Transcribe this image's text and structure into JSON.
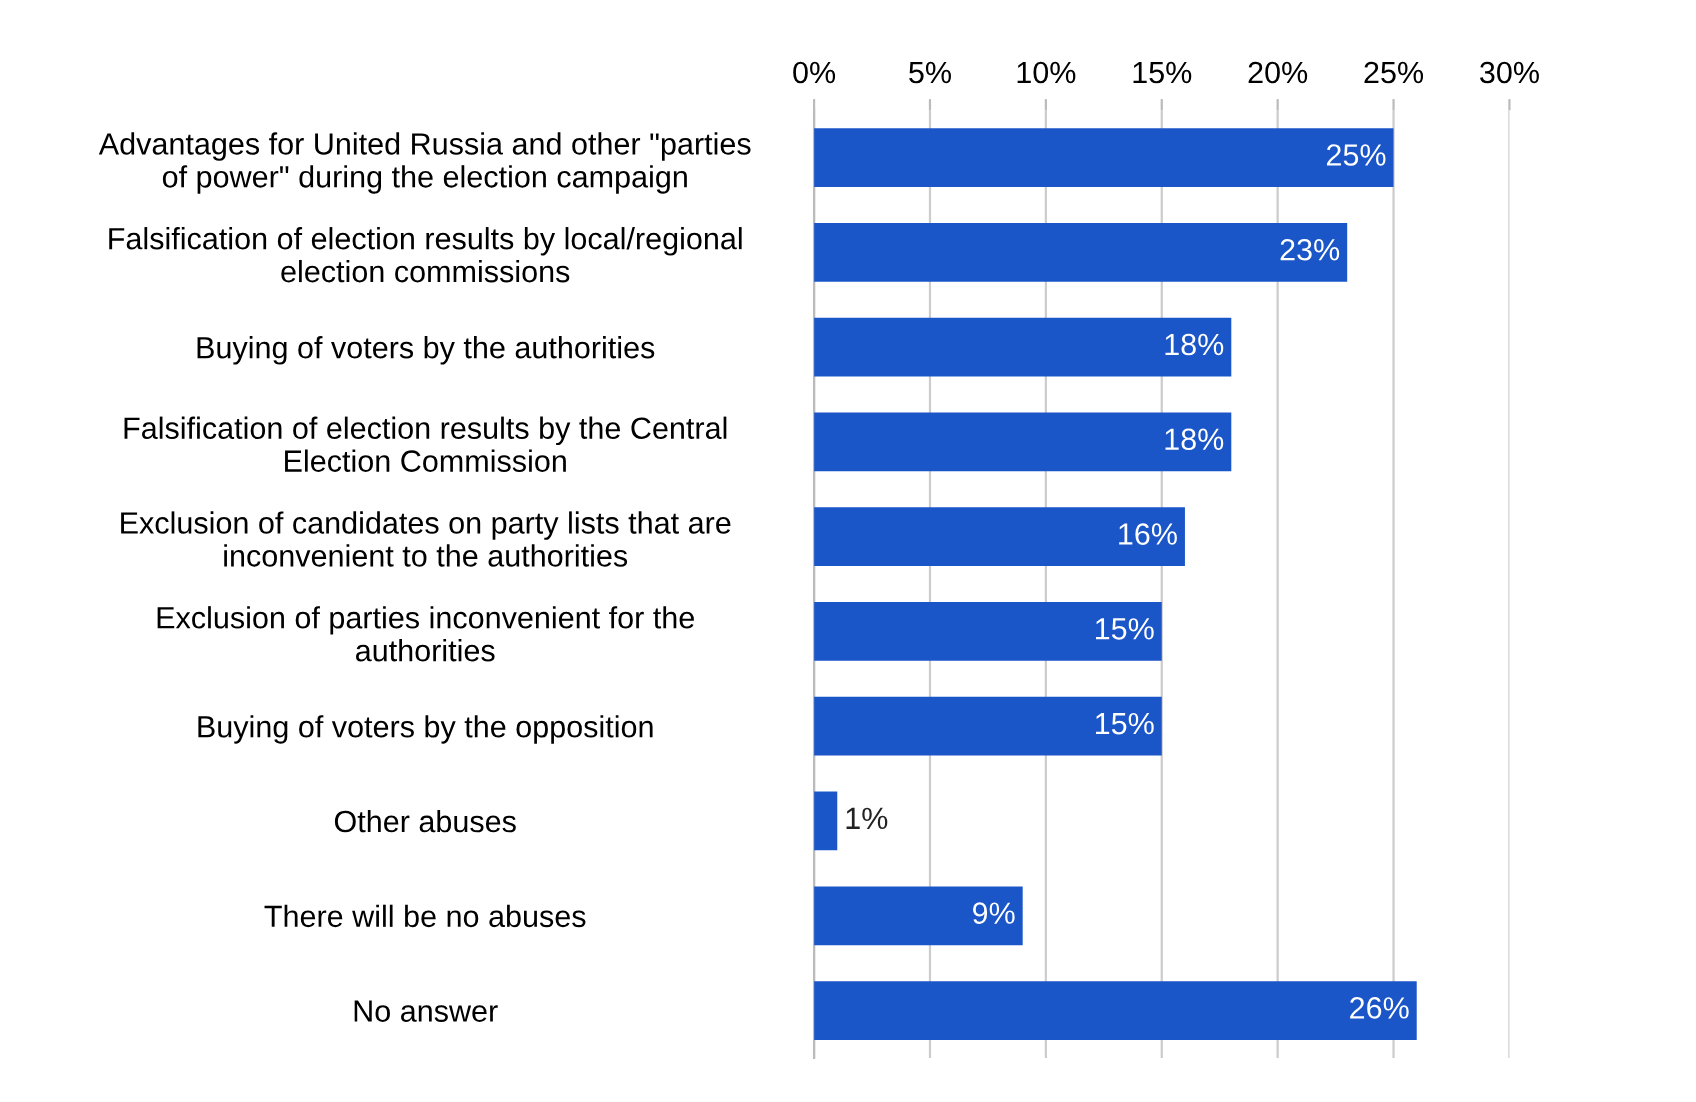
{
  "chart_data": {
    "type": "bar",
    "orientation": "horizontal",
    "categories": [
      "Advantages for United Russia and other \"parties\nof power\" during the election campaign",
      "Falsification of election results by local/regional\nelection commissions",
      "Buying of voters by the authorities",
      "Falsification of election results by the Central\nElection Commission",
      "Exclusion of candidates on party lists that are\ninconvenient to the authorities",
      "Exclusion of parties inconvenient for the\nauthorities",
      "Buying of voters by the opposition",
      "Other abuses",
      "There will be no abuses",
      "No answer"
    ],
    "values": [
      25,
      23,
      18,
      18,
      16,
      15,
      15,
      1,
      9,
      26
    ],
    "color": "#1a56c8",
    "xlim": [
      0,
      30
    ],
    "xticks": [
      {
        "value": 0,
        "label": "0%"
      },
      {
        "value": 5,
        "label": "5%"
      },
      {
        "value": 10,
        "label": "10%"
      },
      {
        "value": 15,
        "label": "15%"
      },
      {
        "value": 20,
        "label": "20%"
      },
      {
        "value": 25,
        "label": "25%"
      },
      {
        "value": 30,
        "label": "30%"
      }
    ],
    "value_labels": [
      "25%",
      "23%",
      "18%",
      "18%",
      "16%",
      "15%",
      "15%",
      "1%",
      "9%",
      "26%"
    ],
    "grid": "x"
  }
}
